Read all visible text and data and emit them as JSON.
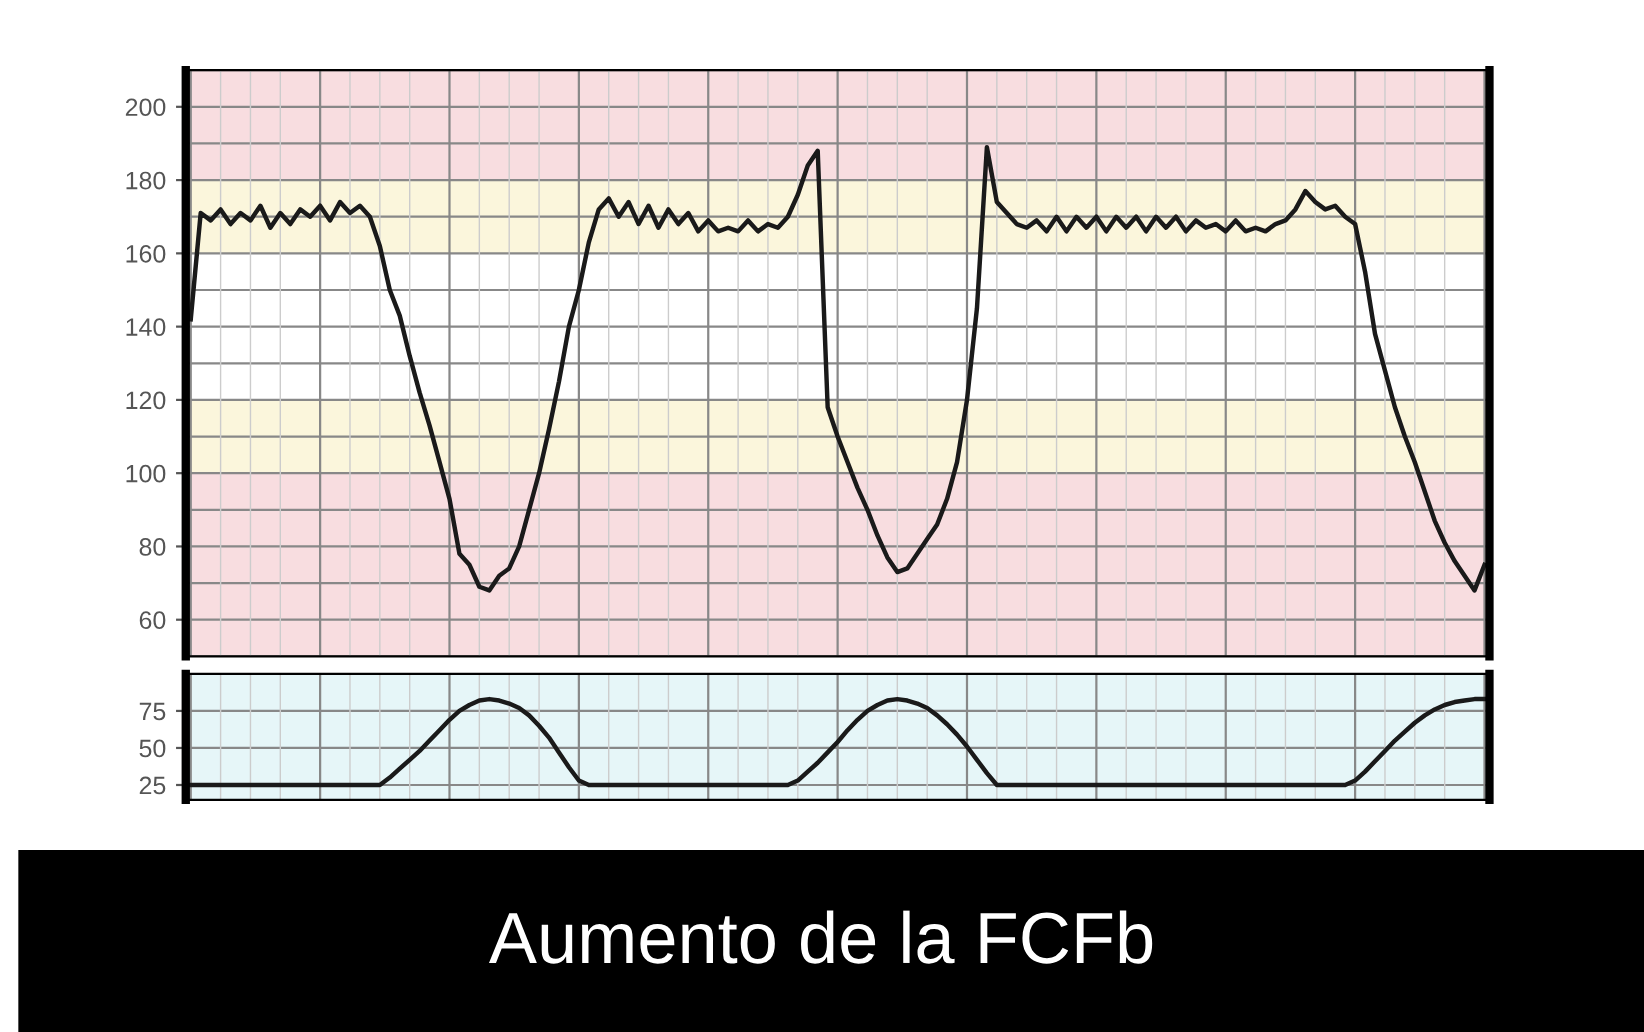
{
  "chart_data": [
    {
      "type": "line",
      "title": "Aumento de la FCFb",
      "categories": [
        null,
        null,
        null,
        null,
        null,
        null,
        null,
        null,
        null,
        null,
        null,
        null,
        null,
        null,
        null,
        null,
        null,
        null,
        null,
        null,
        null,
        null,
        null,
        null,
        null,
        null,
        null,
        null,
        null,
        null,
        null,
        null,
        null,
        null,
        null,
        null,
        null,
        null,
        null,
        null,
        null,
        null,
        null,
        null,
        null,
        null,
        null,
        null,
        null,
        null,
        null,
        null,
        null,
        null,
        null,
        null,
        null,
        null,
        null,
        null,
        null,
        null,
        null,
        null,
        null,
        null,
        null,
        null,
        null,
        null,
        null,
        null,
        null,
        null,
        null,
        null,
        null,
        null,
        null,
        null,
        null,
        null,
        null,
        null,
        null,
        null,
        null,
        null,
        null,
        null,
        null,
        null,
        null,
        null,
        null,
        null,
        null,
        null,
        null,
        null,
        null,
        null,
        null,
        null,
        null,
        null,
        null,
        null,
        null,
        null,
        null,
        null,
        null,
        null,
        null,
        null,
        null,
        null,
        null,
        null,
        null,
        null,
        null,
        null,
        null,
        null,
        null,
        null,
        null,
        null,
        null
      ],
      "series": [
        {
          "color": "#1a1a1a",
          "values": [
            142,
            171,
            169,
            172,
            168,
            171,
            169,
            173,
            167,
            171,
            168,
            172,
            170,
            173,
            169,
            174,
            171,
            173,
            170,
            162,
            150,
            143,
            132,
            122,
            113,
            103,
            93,
            78,
            75,
            69,
            68,
            72,
            74,
            80,
            90,
            100,
            112,
            125,
            140,
            150,
            163,
            172,
            175,
            170,
            174,
            168,
            173,
            167,
            172,
            168,
            171,
            166,
            169,
            166,
            167,
            166,
            169,
            166,
            168,
            167,
            170,
            176,
            184,
            188,
            118,
            110,
            103,
            96,
            90,
            83,
            77,
            73,
            74,
            78,
            82,
            86,
            93,
            103,
            120,
            145,
            189,
            174,
            171,
            168,
            167,
            169,
            166,
            170,
            166,
            170,
            167,
            170,
            166,
            170,
            167,
            170,
            166,
            170,
            167,
            170,
            166,
            169,
            167,
            168,
            166,
            169,
            166,
            167,
            166,
            168,
            169,
            172,
            177,
            174,
            172,
            173,
            170,
            168,
            155,
            138,
            128,
            118,
            110,
            103,
            95,
            87,
            81,
            76,
            72,
            68,
            75
          ]
        }
      ],
      "ylim": [
        50,
        210
      ],
      "yticks": [
        60,
        80,
        100,
        120,
        140,
        160,
        180,
        200
      ],
      "bands": [
        {
          "axis": "y",
          "from": 180,
          "to": 210,
          "color": "#f8dde0"
        },
        {
          "axis": "y",
          "from": 160,
          "to": 180,
          "color": "#fbf6dc"
        },
        {
          "axis": "y",
          "from": 100,
          "to": 120,
          "color": "#fbf6dc"
        },
        {
          "axis": "y",
          "from": 50,
          "to": 100,
          "color": "#f8dde0"
        }
      ],
      "grid": true,
      "tick_labels": "y",
      "marker": "none",
      "line_style": "solid"
    },
    {
      "type": "line",
      "categories": [
        null,
        null,
        null,
        null,
        null,
        null,
        null,
        null,
        null,
        null,
        null,
        null,
        null,
        null,
        null,
        null,
        null,
        null,
        null,
        null,
        null,
        null,
        null,
        null,
        null,
        null,
        null,
        null,
        null,
        null,
        null,
        null,
        null,
        null,
        null,
        null,
        null,
        null,
        null,
        null,
        null,
        null,
        null,
        null,
        null,
        null,
        null,
        null,
        null,
        null,
        null,
        null,
        null,
        null,
        null,
        null,
        null,
        null,
        null,
        null,
        null,
        null,
        null,
        null,
        null,
        null,
        null,
        null,
        null,
        null,
        null,
        null,
        null,
        null,
        null,
        null,
        null,
        null,
        null,
        null,
        null,
        null,
        null,
        null,
        null,
        null,
        null,
        null,
        null,
        null,
        null,
        null,
        null,
        null,
        null,
        null,
        null,
        null,
        null,
        null,
        null,
        null,
        null,
        null,
        null,
        null,
        null,
        null,
        null,
        null,
        null,
        null,
        null,
        null,
        null,
        null,
        null,
        null,
        null,
        null,
        null,
        null,
        null,
        null,
        null,
        null,
        null,
        null,
        null,
        null,
        null
      ],
      "series": [
        {
          "color": "#1a1a1a",
          "values": [
            25,
            25,
            25,
            25,
            25,
            25,
            25,
            25,
            25,
            25,
            25,
            25,
            25,
            25,
            25,
            25,
            25,
            25,
            25,
            25,
            30,
            36,
            42,
            48,
            55,
            62,
            69,
            75,
            79,
            82,
            83,
            82,
            80,
            77,
            72,
            65,
            57,
            47,
            37,
            28,
            25,
            25,
            25,
            25,
            25,
            25,
            25,
            25,
            25,
            25,
            25,
            25,
            25,
            25,
            25,
            25,
            25,
            25,
            25,
            25,
            25,
            28,
            34,
            40,
            47,
            54,
            62,
            69,
            75,
            79,
            82,
            83,
            82,
            80,
            77,
            72,
            66,
            59,
            51,
            42,
            33,
            25,
            25,
            25,
            25,
            25,
            25,
            25,
            25,
            25,
            25,
            25,
            25,
            25,
            25,
            25,
            25,
            25,
            25,
            25,
            25,
            25,
            25,
            25,
            25,
            25,
            25,
            25,
            25,
            25,
            25,
            25,
            25,
            25,
            25,
            25,
            25,
            28,
            34,
            41,
            48,
            55,
            61,
            67,
            72,
            76,
            79,
            81,
            82,
            83,
            83
          ]
        }
      ],
      "ylim": [
        15,
        100
      ],
      "yticks": [
        25,
        50,
        75
      ],
      "grid": true,
      "tick_labels": "y",
      "marker": "none",
      "line_style": "solid"
    }
  ]
}
